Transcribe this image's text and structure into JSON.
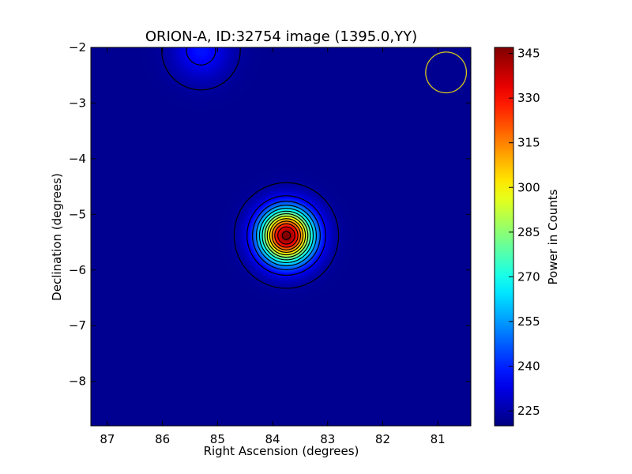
{
  "chart_data": {
    "type": "heatmap",
    "title": "ORION-A, ID:32754 image (1395.0,YY)",
    "xlabel": "Right Ascension (degrees)",
    "ylabel": "Declination (degrees)",
    "colorbar_label": "Power in Counts",
    "colormap": "jet",
    "xlim": [
      87.3,
      80.4
    ],
    "ylim": [
      -8.8,
      -2.0
    ],
    "x_ticks": [
      87,
      86,
      85,
      84,
      83,
      82,
      81
    ],
    "y_ticks": [
      -2,
      -3,
      -4,
      -5,
      -6,
      -7,
      -8
    ],
    "x_tick_labels": [
      "87",
      "86",
      "85",
      "84",
      "83",
      "82",
      "81"
    ],
    "y_tick_labels": [
      "−2",
      "−3",
      "−4",
      "−5",
      "−6",
      "−7",
      "−8"
    ],
    "clim": [
      220,
      347
    ],
    "colorbar_ticks": [
      225,
      240,
      255,
      270,
      285,
      300,
      315,
      330,
      345
    ],
    "colorbar_tick_labels": [
      "225",
      "240",
      "255",
      "270",
      "285",
      "300",
      "315",
      "330",
      "345"
    ],
    "background_value": 222,
    "grid": false,
    "sources": [
      {
        "ra": 83.75,
        "dec": -5.38,
        "peak": 347,
        "sigma_deg": 0.33
      },
      {
        "ra": 85.3,
        "dec": -2.05,
        "peak": 238,
        "sigma_deg": 0.35
      }
    ],
    "contour_levels": [
      224,
      234,
      244,
      254,
      264,
      274,
      284,
      294,
      304,
      314,
      324,
      334,
      344
    ],
    "beam_marker": {
      "ra": 80.85,
      "dec": -2.45,
      "radius_deg": 0.37,
      "color": "#d4c61a"
    }
  }
}
